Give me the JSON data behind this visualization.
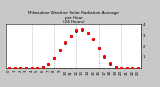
{
  "title": "Milwaukee Weather Solar Radiation Average\nper Hour\n(24 Hours)",
  "hours": [
    0,
    1,
    2,
    3,
    4,
    5,
    6,
    7,
    8,
    9,
    10,
    11,
    12,
    13,
    14,
    15,
    16,
    17,
    18,
    19,
    20,
    21,
    22,
    23
  ],
  "solar_red": [
    0,
    0,
    0,
    0,
    0,
    2,
    8,
    35,
    95,
    165,
    235,
    295,
    345,
    355,
    325,
    265,
    185,
    105,
    42,
    10,
    1,
    0,
    0,
    0
  ],
  "solar_black": [
    0,
    0,
    0,
    0,
    0,
    1,
    6,
    32,
    92,
    162,
    232,
    292,
    342,
    352,
    322,
    262,
    182,
    102,
    39,
    7,
    0,
    0,
    0,
    0
  ],
  "ylim": [
    0,
    400
  ],
  "ytick_vals": [
    100,
    200,
    300,
    400
  ],
  "ytick_labels": [
    "1",
    "2",
    "3",
    "4"
  ],
  "dot_color_red": "#ff0000",
  "dot_color_black": "#000000",
  "bg_color": "#ffffff",
  "vgrid_color": "#999999",
  "vgrid_hours": [
    4,
    8,
    12,
    16,
    20
  ],
  "title_color": "#000000",
  "fig_bg": "#c8c8c8",
  "title_fontsize": 3.0,
  "tick_fontsize": 2.8,
  "markersize_red": 1.3,
  "markersize_black": 1.0
}
